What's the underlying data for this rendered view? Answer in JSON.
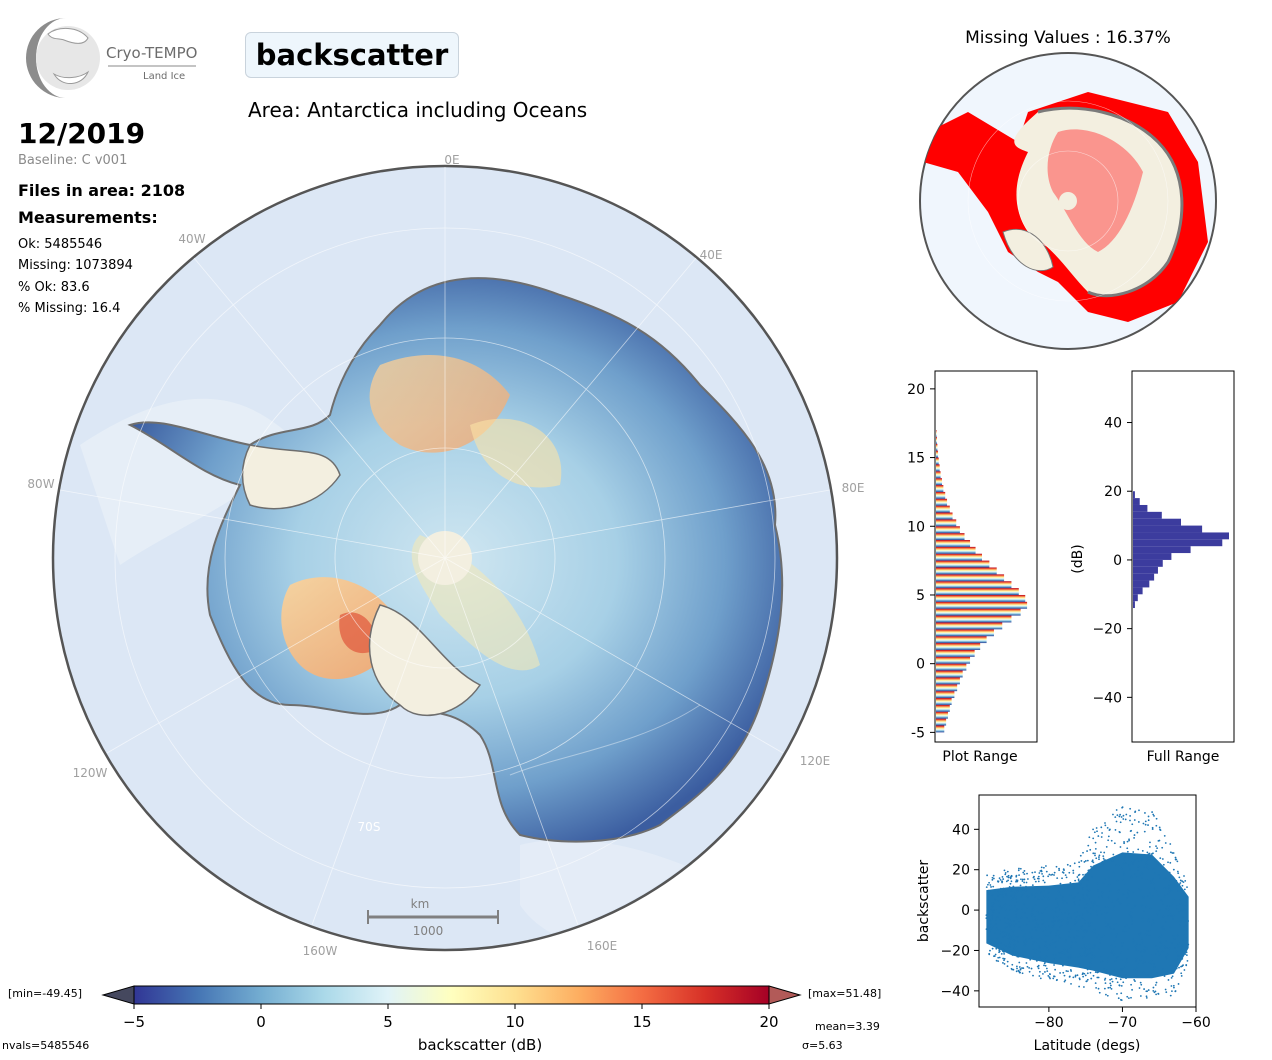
{
  "logo": {
    "name": "Cryo-TEMPO",
    "subtitle": "Land Ice"
  },
  "header": {
    "parameter": "backscatter",
    "area": "Area: Antarctica including Oceans",
    "date": "12/2019",
    "baseline": "Baseline: C v001"
  },
  "stats": {
    "files": "Files in area: 2108",
    "measurements_heading": "Measurements:",
    "ok": "Ok: 5485546",
    "missing": "Missing: 1073894",
    "pct_ok": "% Ok: 83.6",
    "pct_missing": "% Missing: 16.4"
  },
  "map": {
    "longitude_labels": [
      "0E",
      "40E",
      "80E",
      "120E",
      "160E",
      "160W",
      "120W",
      "80W",
      "40W"
    ],
    "latitude_label": "70S",
    "scalebar_unit": "km",
    "scalebar_value": "1000"
  },
  "missing_map": {
    "title": "Missing Values : 16.37%",
    "missing_color": "#ff0000"
  },
  "colors": {
    "ocean": "#dbe6f4",
    "land_mask": "#f3efe0",
    "hist_full": "#3c3c9e",
    "scatter": "#1f77b4",
    "coast": "#6e6e6e"
  },
  "colorbar": {
    "label": "backscatter (dB)",
    "ticks": [
      "-5",
      "0",
      "5",
      "10",
      "15",
      "20"
    ],
    "min_label": "[min=-49.45]",
    "max_label": "[max=51.48]",
    "mean_label": "mean=3.39",
    "sigma_label": "σ=5.63",
    "nvals_label": "nvals=5485546",
    "colormap": [
      "#313695",
      "#4575b4",
      "#74add1",
      "#abd9e9",
      "#e0f3f8",
      "#ffffbf",
      "#fee090",
      "#fdae61",
      "#f46d43",
      "#d73027",
      "#a50026"
    ]
  },
  "chart_data": [
    {
      "type": "bar",
      "orientation": "horizontal",
      "xlabel": "Plot Range",
      "ylim": [
        -5.7,
        21.3
      ],
      "yticks": [
        "-5",
        "0",
        "5",
        "10",
        "15",
        "20"
      ],
      "bins": [
        -5.0,
        -4.5,
        -4.0,
        -3.5,
        -3.0,
        -2.5,
        -2.0,
        -1.5,
        -1.0,
        -0.5,
        0.0,
        0.5,
        1.0,
        1.5,
        2.0,
        2.5,
        3.0,
        3.5,
        4.0,
        4.5,
        5.0,
        5.5,
        6.0,
        6.5,
        7.0,
        7.5,
        8.0,
        8.5,
        9.0,
        9.5,
        10.0,
        10.5,
        11.0,
        11.5,
        12.0,
        12.5,
        13.0,
        13.5,
        14.0,
        14.5,
        15.0,
        15.5,
        16.0,
        16.5
      ],
      "values": [
        0.09,
        0.11,
        0.13,
        0.15,
        0.17,
        0.2,
        0.23,
        0.26,
        0.29,
        0.33,
        0.37,
        0.42,
        0.48,
        0.55,
        0.63,
        0.72,
        0.82,
        0.92,
        0.99,
        0.97,
        0.9,
        0.82,
        0.74,
        0.66,
        0.58,
        0.5,
        0.43,
        0.37,
        0.31,
        0.26,
        0.22,
        0.18,
        0.15,
        0.12,
        0.1,
        0.08,
        0.065,
        0.05,
        0.04,
        0.03,
        0.022,
        0.015,
        0.01,
        0.006
      ]
    },
    {
      "type": "bar",
      "orientation": "horizontal",
      "xlabel": "Full Range",
      "ylabel": "(dB)",
      "ylim": [
        -53,
        55
      ],
      "yticks": [
        "40",
        "20",
        "0",
        "−20",
        "−40"
      ],
      "bins": [
        -14,
        -12,
        -10,
        -8,
        -6,
        -4,
        -2,
        0,
        2,
        4,
        6,
        8,
        10,
        12,
        14,
        16,
        18
      ],
      "values": [
        0.02,
        0.05,
        0.1,
        0.17,
        0.22,
        0.26,
        0.31,
        0.4,
        0.6,
        0.93,
        1.0,
        0.72,
        0.5,
        0.3,
        0.15,
        0.07,
        0.02
      ]
    },
    {
      "type": "scatter",
      "xlabel": "Latitude (degs)",
      "ylabel": "backscatter",
      "xlim": [
        -89.5,
        -60
      ],
      "ylim": [
        -48,
        57
      ],
      "xticks": [
        "−80",
        "−70",
        "−60"
      ],
      "yticks": [
        "40",
        "20",
        "0",
        "−20",
        "−40"
      ],
      "envelope": [
        {
          "lat": -88.5,
          "ymin": -22,
          "ymax": 18
        },
        {
          "lat": -85,
          "ymin": -30,
          "ymax": 21
        },
        {
          "lat": -80,
          "ymin": -35,
          "ymax": 22
        },
        {
          "lat": -76,
          "ymin": -38,
          "ymax": 25
        },
        {
          "lat": -74,
          "ymin": -40,
          "ymax": 40
        },
        {
          "lat": -70,
          "ymin": -45,
          "ymax": 52
        },
        {
          "lat": -66,
          "ymin": -45,
          "ymax": 50
        },
        {
          "lat": -63,
          "ymin": -42,
          "ymax": 30
        },
        {
          "lat": -61,
          "ymin": -25,
          "ymax": 12
        }
      ]
    }
  ]
}
